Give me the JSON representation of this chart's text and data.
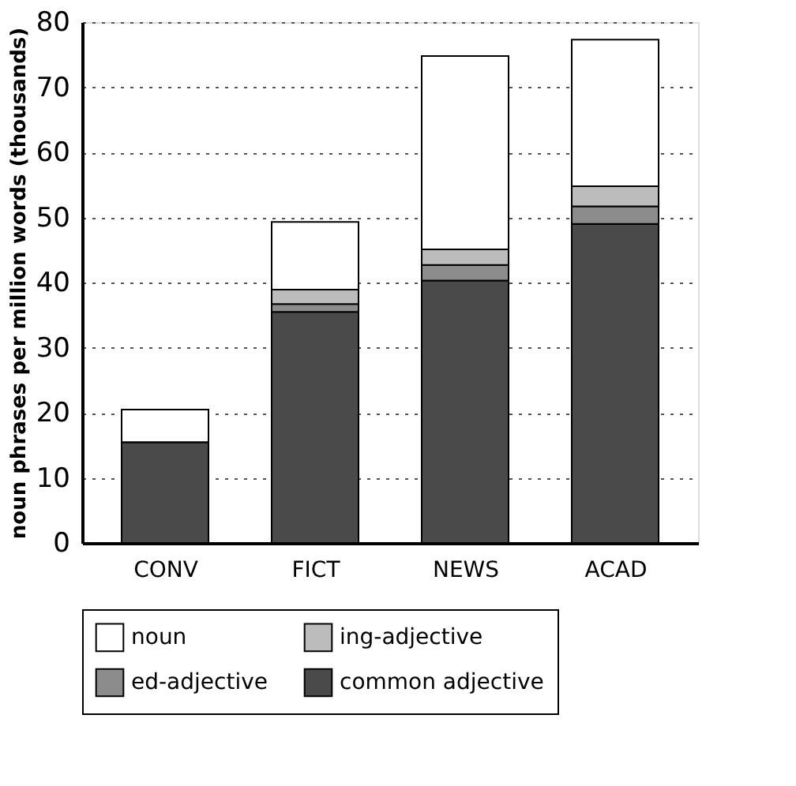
{
  "chart_data": {
    "type": "bar",
    "stacked": true,
    "ylabel": "noun phrases per million words (thousands)",
    "categories": [
      "CONV",
      "FICT",
      "NEWS",
      "ACAD"
    ],
    "series": [
      {
        "name": "common adjective",
        "color": "#4a4a4a",
        "values": [
          15.5,
          35.5,
          40.3,
          49
        ]
      },
      {
        "name": "ed-adjective",
        "color": "#8c8c8c",
        "values": [
          0,
          1.2,
          2.4,
          2.7
        ]
      },
      {
        "name": "ing-adjective",
        "color": "#bcbcbc",
        "values": [
          0,
          2.2,
          2.4,
          3.1
        ]
      },
      {
        "name": "noun",
        "color": "#ffffff",
        "values": [
          5,
          10.4,
          29.7,
          22.5
        ]
      }
    ],
    "ylim": [
      0,
      80
    ],
    "yticks": [
      0,
      10,
      20,
      30,
      40,
      50,
      60,
      70,
      80
    ],
    "grid": "y",
    "legend": "bottom"
  }
}
